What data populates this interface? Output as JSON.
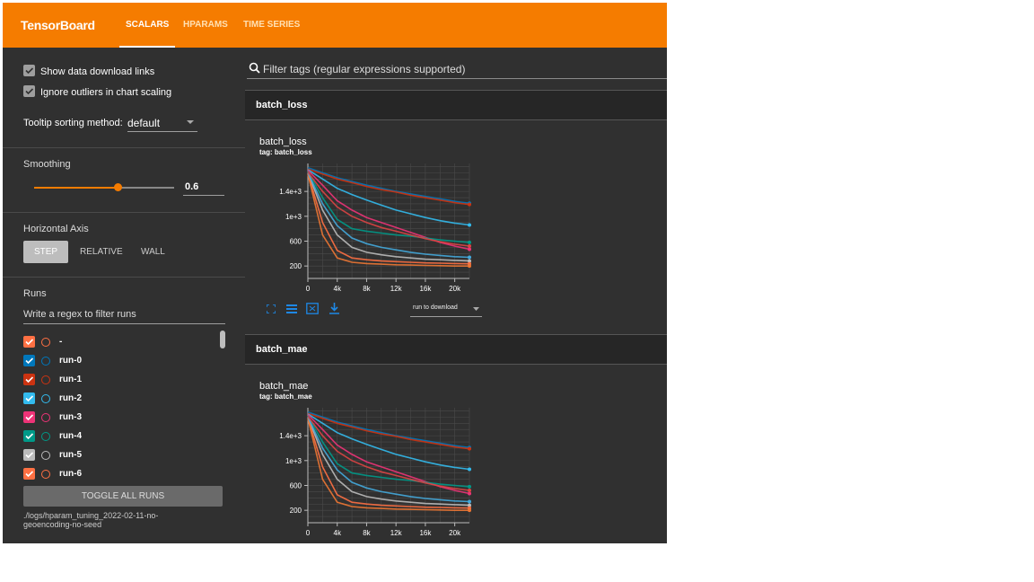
{
  "header": {
    "brand": "TensorBoard",
    "tabs": [
      {
        "label": "SCALARS",
        "active": true
      },
      {
        "label": "HPARAMS",
        "active": false
      },
      {
        "label": "TIME SERIES",
        "active": false
      }
    ],
    "bar_color": "#f57c00"
  },
  "sidebar": {
    "show_download_links": {
      "label": "Show data download links",
      "checked": true
    },
    "ignore_outliers": {
      "label": "Ignore outliers in chart scaling",
      "checked": true
    },
    "tooltip": {
      "label": "Tooltip sorting method:",
      "value": "default"
    },
    "smoothing": {
      "label": "Smoothing",
      "value": "0.6",
      "level": 0.6
    },
    "horizontal_axis": {
      "label": "Horizontal Axis",
      "options": [
        "STEP",
        "RELATIVE",
        "WALL"
      ],
      "selected": "STEP"
    },
    "runs": {
      "label": "Runs",
      "filter_placeholder": "Write a regex to filter runs",
      "items": [
        {
          "name": "-",
          "color": "#ff7043"
        },
        {
          "name": "run-0",
          "color": "#0077bb"
        },
        {
          "name": "run-1",
          "color": "#cc3311"
        },
        {
          "name": "run-2",
          "color": "#33bbee"
        },
        {
          "name": "run-3",
          "color": "#ee3377"
        },
        {
          "name": "run-4",
          "color": "#009988"
        },
        {
          "name": "run-5",
          "color": "#bbbbbb"
        },
        {
          "name": "run-6",
          "color": "#ff7043"
        }
      ],
      "toggle_all": "TOGGLE ALL RUNS",
      "logdir": "./logs/hparam_tuning_2022-02-11-no-geoencoding-no-seed"
    }
  },
  "main": {
    "filter_placeholder": "Filter tags (regular expressions supported)",
    "sections": [
      {
        "header": "batch_loss",
        "card_title": "batch_loss",
        "card_tag": "tag: batch_loss",
        "run_download": "run to download"
      },
      {
        "header": "batch_mae",
        "card_title": "batch_mae",
        "card_tag": "tag: batch_mae"
      }
    ]
  },
  "chart_data": [
    {
      "type": "line",
      "xlabel": "",
      "ylabel": "",
      "xlim": [
        0,
        22000
      ],
      "ylim": [
        0,
        1850
      ],
      "x_ticks": [
        0,
        4000,
        8000,
        12000,
        16000,
        20000
      ],
      "x_tick_labels": [
        "0",
        "4k",
        "8k",
        "12k",
        "16k",
        "20k"
      ],
      "y_ticks": [
        200,
        600,
        1000,
        1400
      ],
      "y_tick_labels": [
        "200",
        "600",
        "1e+3",
        "1.4e+3"
      ],
      "grid": true,
      "series": [
        {
          "color": "#0077bb",
          "x": [
            0,
            2000,
            4000,
            6000,
            8000,
            10000,
            12000,
            14000,
            16000,
            18000,
            20000,
            22000
          ],
          "values": [
            1780,
            1700,
            1620,
            1560,
            1500,
            1450,
            1400,
            1360,
            1320,
            1280,
            1240,
            1210
          ]
        },
        {
          "color": "#cc3311",
          "x": [
            0,
            2000,
            4000,
            6000,
            8000,
            10000,
            12000,
            14000,
            16000,
            18000,
            20000,
            22000
          ],
          "values": [
            1760,
            1680,
            1600,
            1540,
            1480,
            1430,
            1390,
            1340,
            1300,
            1260,
            1220,
            1190
          ]
        },
        {
          "color": "#33bbee",
          "x": [
            0,
            2000,
            4000,
            6000,
            8000,
            10000,
            12000,
            14000,
            16000,
            18000,
            20000,
            22000
          ],
          "values": [
            1750,
            1600,
            1450,
            1350,
            1260,
            1180,
            1100,
            1040,
            980,
            930,
            890,
            860
          ]
        },
        {
          "color": "#ee3377",
          "x": [
            0,
            2000,
            4000,
            6000,
            8000,
            10000,
            12000,
            14000,
            16000,
            18000,
            20000,
            22000
          ],
          "values": [
            1740,
            1500,
            1250,
            1100,
            980,
            900,
            820,
            740,
            660,
            580,
            520,
            470
          ]
        },
        {
          "color": "#009988",
          "x": [
            0,
            2000,
            4000,
            6000,
            8000,
            10000,
            12000,
            14000,
            16000,
            18000,
            20000,
            22000
          ],
          "values": [
            1720,
            1300,
            950,
            800,
            760,
            730,
            700,
            680,
            650,
            620,
            600,
            580
          ]
        },
        {
          "color": "#bbbbbb",
          "x": [
            0,
            2000,
            4000,
            6000,
            8000,
            10000,
            12000,
            14000,
            16000,
            18000,
            20000,
            22000
          ],
          "values": [
            1700,
            1100,
            700,
            500,
            420,
            380,
            350,
            330,
            310,
            300,
            290,
            280
          ]
        },
        {
          "color": "#ff7043",
          "x": [
            0,
            2000,
            4000,
            6000,
            8000,
            10000,
            12000,
            14000,
            16000,
            18000,
            20000,
            22000
          ],
          "values": [
            1690,
            900,
            450,
            330,
            300,
            280,
            270,
            260,
            250,
            245,
            240,
            235
          ]
        },
        {
          "color": "#ee7733",
          "x": [
            0,
            2000,
            4000,
            6000,
            8000,
            10000,
            12000,
            14000,
            16000,
            18000,
            20000,
            22000
          ],
          "values": [
            1680,
            700,
            330,
            260,
            240,
            230,
            220,
            215,
            210,
            205,
            200,
            200
          ]
        },
        {
          "color": "#44aadd",
          "x": [
            0,
            2000,
            4000,
            6000,
            8000,
            10000,
            12000,
            14000,
            16000,
            18000,
            20000,
            22000
          ],
          "values": [
            1700,
            1200,
            850,
            650,
            560,
            500,
            460,
            420,
            390,
            370,
            350,
            340
          ]
        },
        {
          "color": "#dd4444",
          "x": [
            0,
            2000,
            4000,
            6000,
            8000,
            10000,
            12000,
            14000,
            16000,
            18000,
            20000,
            22000
          ],
          "values": [
            1710,
            1400,
            1150,
            1000,
            900,
            820,
            760,
            700,
            640,
            590,
            550,
            520
          ]
        }
      ]
    },
    {
      "type": "line",
      "xlabel": "",
      "ylabel": "",
      "xlim": [
        0,
        22000
      ],
      "ylim": [
        0,
        1850
      ],
      "x_ticks": [
        0,
        4000,
        8000,
        12000,
        16000,
        20000
      ],
      "x_tick_labels": [
        "0",
        "4k",
        "8k",
        "12k",
        "16k",
        "20k"
      ],
      "y_ticks": [
        200,
        600,
        1000,
        1400
      ],
      "y_tick_labels": [
        "200",
        "600",
        "1e+3",
        "1.4e+3"
      ],
      "grid": true,
      "series": [
        {
          "color": "#0077bb",
          "x": [
            0,
            2000,
            4000,
            6000,
            8000,
            10000,
            12000,
            14000,
            16000,
            18000,
            20000,
            22000
          ],
          "values": [
            1780,
            1700,
            1620,
            1560,
            1500,
            1450,
            1400,
            1360,
            1320,
            1280,
            1240,
            1210
          ]
        },
        {
          "color": "#cc3311",
          "x": [
            0,
            2000,
            4000,
            6000,
            8000,
            10000,
            12000,
            14000,
            16000,
            18000,
            20000,
            22000
          ],
          "values": [
            1760,
            1680,
            1600,
            1540,
            1480,
            1430,
            1390,
            1340,
            1300,
            1260,
            1220,
            1190
          ]
        },
        {
          "color": "#33bbee",
          "x": [
            0,
            2000,
            4000,
            6000,
            8000,
            10000,
            12000,
            14000,
            16000,
            18000,
            20000,
            22000
          ],
          "values": [
            1750,
            1600,
            1450,
            1350,
            1260,
            1180,
            1100,
            1040,
            980,
            930,
            890,
            860
          ]
        },
        {
          "color": "#ee3377",
          "x": [
            0,
            2000,
            4000,
            6000,
            8000,
            10000,
            12000,
            14000,
            16000,
            18000,
            20000,
            22000
          ],
          "values": [
            1740,
            1500,
            1250,
            1100,
            980,
            900,
            820,
            740,
            660,
            580,
            520,
            470
          ]
        },
        {
          "color": "#009988",
          "x": [
            0,
            2000,
            4000,
            6000,
            8000,
            10000,
            12000,
            14000,
            16000,
            18000,
            20000,
            22000
          ],
          "values": [
            1720,
            1300,
            950,
            800,
            760,
            730,
            700,
            680,
            650,
            620,
            600,
            580
          ]
        },
        {
          "color": "#bbbbbb",
          "x": [
            0,
            2000,
            4000,
            6000,
            8000,
            10000,
            12000,
            14000,
            16000,
            18000,
            20000,
            22000
          ],
          "values": [
            1700,
            1100,
            700,
            500,
            420,
            380,
            350,
            330,
            310,
            300,
            290,
            280
          ]
        },
        {
          "color": "#ff7043",
          "x": [
            0,
            2000,
            4000,
            6000,
            8000,
            10000,
            12000,
            14000,
            16000,
            18000,
            20000,
            22000
          ],
          "values": [
            1690,
            900,
            450,
            330,
            300,
            280,
            270,
            260,
            250,
            245,
            240,
            235
          ]
        },
        {
          "color": "#ee7733",
          "x": [
            0,
            2000,
            4000,
            6000,
            8000,
            10000,
            12000,
            14000,
            16000,
            18000,
            20000,
            22000
          ],
          "values": [
            1680,
            700,
            330,
            260,
            240,
            230,
            220,
            215,
            210,
            205,
            200,
            200
          ]
        },
        {
          "color": "#44aadd",
          "x": [
            0,
            2000,
            4000,
            6000,
            8000,
            10000,
            12000,
            14000,
            16000,
            18000,
            20000,
            22000
          ],
          "values": [
            1700,
            1200,
            850,
            650,
            560,
            500,
            460,
            420,
            390,
            370,
            350,
            340
          ]
        },
        {
          "color": "#dd4444",
          "x": [
            0,
            2000,
            4000,
            6000,
            8000,
            10000,
            12000,
            14000,
            16000,
            18000,
            20000,
            22000
          ],
          "values": [
            1710,
            1400,
            1150,
            1000,
            900,
            820,
            760,
            700,
            640,
            590,
            550,
            520
          ]
        }
      ]
    }
  ]
}
